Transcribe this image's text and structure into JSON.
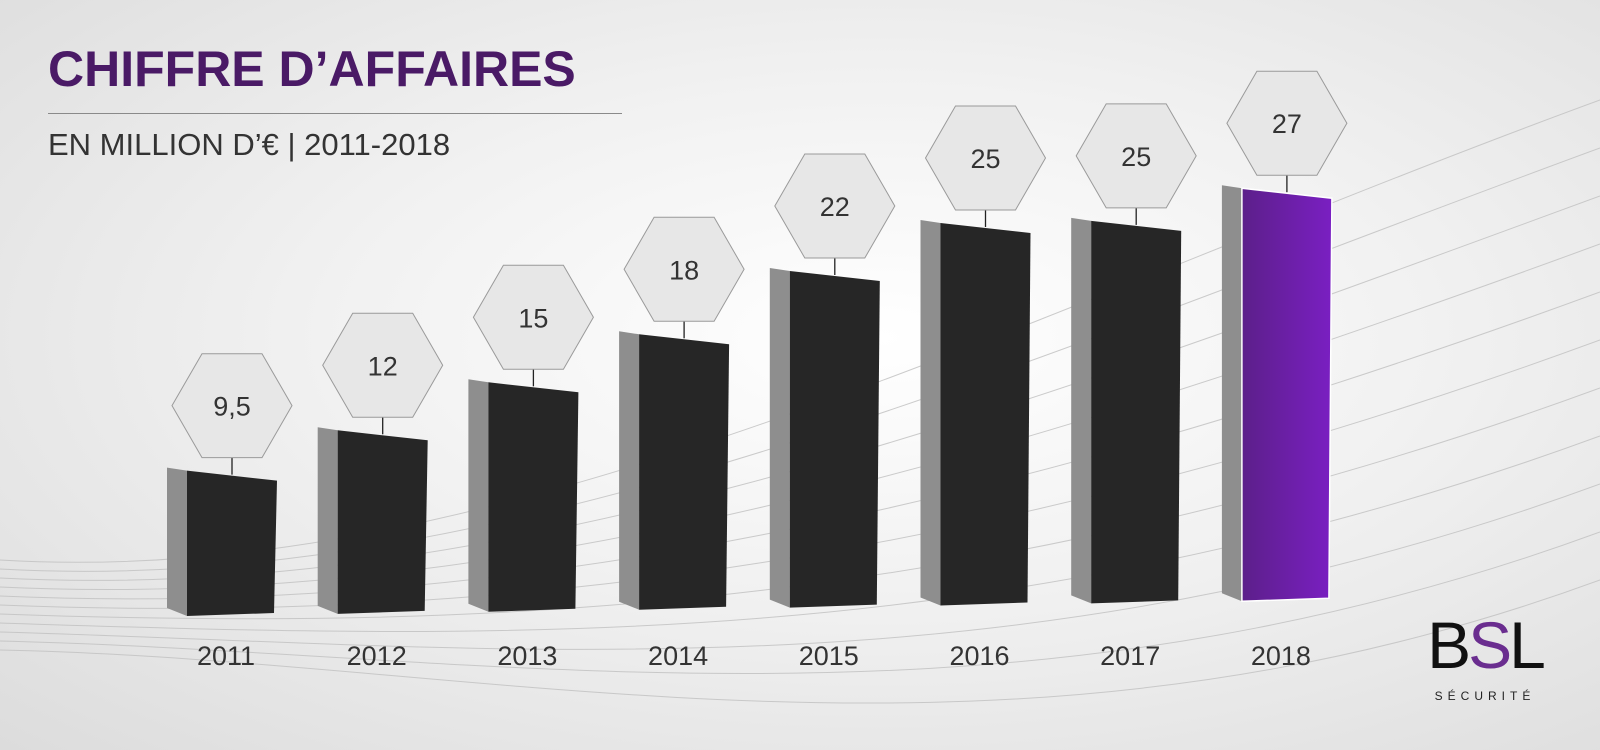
{
  "header": {
    "title": "CHIFFRE D’AFFAIRES",
    "subtitle": "EN MILLION D’€ | 2011-2018"
  },
  "logo": {
    "text_parts": [
      "B",
      "S",
      "L"
    ],
    "tagline": "SÉCURITÉ"
  },
  "colors": {
    "bar_front": "#262626",
    "bar_side": "#8e8e8e",
    "highlight_front": "#7a1fc2",
    "highlight_side": "#8e8e8e",
    "title": "#4a1a66",
    "hexagon_stroke": "#9a9a9a"
  },
  "chart_data": {
    "type": "bar",
    "title": "CHIFFRE D’AFFAIRES",
    "subtitle": "EN MILLION D’€ | 2011-2018",
    "categories": [
      "2011",
      "2012",
      "2013",
      "2014",
      "2015",
      "2016",
      "2017",
      "2018"
    ],
    "values": [
      9.5,
      12,
      15,
      18,
      22,
      25,
      25,
      27
    ],
    "value_labels": [
      "9,5",
      "12",
      "15",
      "18",
      "22",
      "25",
      "25",
      "27"
    ],
    "highlight_category": "2018",
    "xlabel": "",
    "ylabel": "",
    "grid": false,
    "legend": "none"
  }
}
